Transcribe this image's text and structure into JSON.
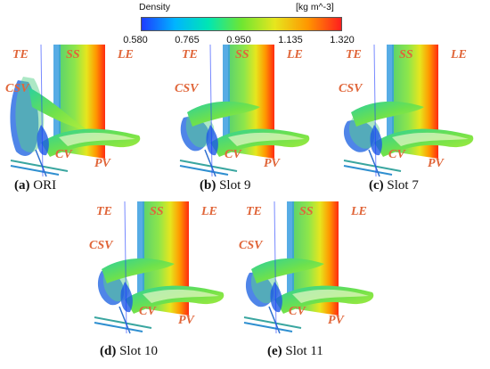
{
  "colorbar": {
    "title": "Density",
    "unit": "[kg m^-3]",
    "ticks": [
      "0.580",
      "0.765",
      "0.950",
      "1.135",
      "1.320"
    ],
    "colors": [
      "#1e3cff",
      "#00b4ff",
      "#00e6b4",
      "#6ee632",
      "#e6e61e",
      "#ff9600",
      "#ff1e1e"
    ]
  },
  "panels": [
    {
      "letter": "(a)",
      "name": "ORI",
      "labels": {
        "te": "TE",
        "ss": "SS",
        "le": "LE",
        "csv": "CSV",
        "cv": "CV",
        "pv": "PV"
      }
    },
    {
      "letter": "(b)",
      "name": "Slot 9",
      "labels": {
        "te": "TE",
        "ss": "SS",
        "le": "LE",
        "csv": "CSV",
        "cv": "CV",
        "pv": "PV"
      }
    },
    {
      "letter": "(c)",
      "name": "Slot 7",
      "labels": {
        "te": "TE",
        "ss": "SS",
        "le": "LE",
        "csv": "CSV",
        "cv": "CV",
        "pv": "PV"
      }
    },
    {
      "letter": "(d)",
      "name": "Slot 10",
      "labels": {
        "te": "TE",
        "ss": "SS",
        "le": "LE",
        "csv": "CSV",
        "cv": "CV",
        "pv": "PV"
      }
    },
    {
      "letter": "(e)",
      "name": "Slot 11",
      "labels": {
        "te": "TE",
        "ss": "SS",
        "le": "LE",
        "csv": "CSV",
        "cv": "CV",
        "pv": "PV"
      }
    }
  ]
}
